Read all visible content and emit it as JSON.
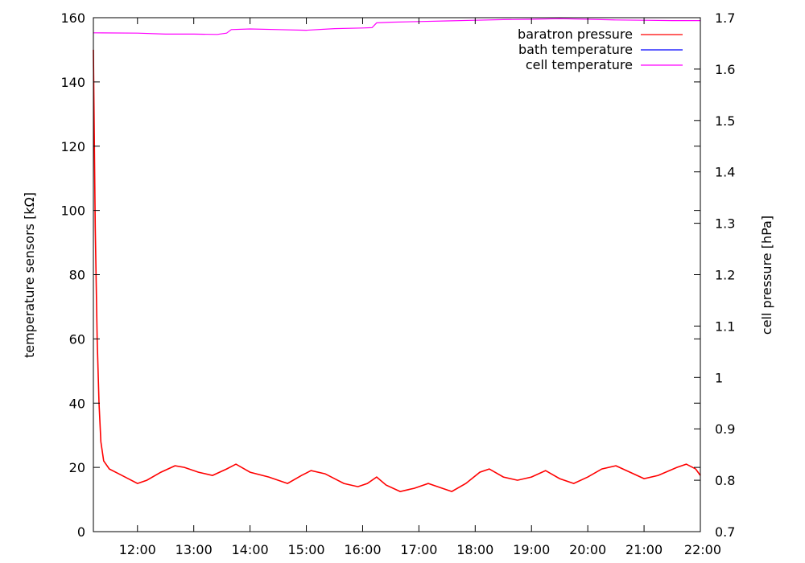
{
  "chart_data": {
    "type": "line",
    "xlabel": "",
    "ylabel": "temperature sensors [kΩ]",
    "y2label": "cell pressure [hPa]",
    "x_ticks": [
      "12:00",
      "13:00",
      "14:00",
      "15:00",
      "16:00",
      "17:00",
      "18:00",
      "19:00",
      "20:00",
      "21:00",
      "22:00"
    ],
    "xlim": [
      "11:13",
      "22:00"
    ],
    "ylim": [
      0,
      160
    ],
    "y_ticks": [
      0,
      20,
      40,
      60,
      80,
      100,
      120,
      140,
      160
    ],
    "y2lim": [
      0.7,
      1.7
    ],
    "y2_ticks": [
      "0.7",
      "0.8",
      "0.9",
      "1",
      "1.1",
      "1.2",
      "1.3",
      "1.4",
      "1.5",
      "1.6",
      "1.7"
    ],
    "grid": false,
    "legend_position": "top-right",
    "series": [
      {
        "name": "baratron pressure",
        "color": "#ff0000",
        "axis": "y",
        "points": [
          [
            "11:13",
            150
          ],
          [
            "11:15",
            95
          ],
          [
            "11:17",
            60
          ],
          [
            "11:19",
            40
          ],
          [
            "11:21",
            28
          ],
          [
            "11:24",
            22
          ],
          [
            "11:30",
            19.5
          ],
          [
            "11:40",
            18
          ],
          [
            "11:50",
            16.5
          ],
          [
            "12:00",
            15
          ],
          [
            "12:10",
            16
          ],
          [
            "12:25",
            18.5
          ],
          [
            "12:40",
            20.5
          ],
          [
            "12:50",
            20
          ],
          [
            "13:05",
            18.5
          ],
          [
            "13:20",
            17.5
          ],
          [
            "13:35",
            19.5
          ],
          [
            "13:45",
            21
          ],
          [
            "14:00",
            18.5
          ],
          [
            "14:20",
            17
          ],
          [
            "14:40",
            15
          ],
          [
            "14:55",
            17.5
          ],
          [
            "15:05",
            19
          ],
          [
            "15:20",
            18
          ],
          [
            "15:40",
            15
          ],
          [
            "15:55",
            14
          ],
          [
            "16:05",
            15
          ],
          [
            "16:15",
            17
          ],
          [
            "16:25",
            14.5
          ],
          [
            "16:40",
            12.5
          ],
          [
            "16:55",
            13.5
          ],
          [
            "17:10",
            15
          ],
          [
            "17:25",
            13.5
          ],
          [
            "17:35",
            12.5
          ],
          [
            "17:50",
            15
          ],
          [
            "18:05",
            18.5
          ],
          [
            "18:15",
            19.5
          ],
          [
            "18:30",
            17
          ],
          [
            "18:45",
            16
          ],
          [
            "19:00",
            17
          ],
          [
            "19:15",
            19
          ],
          [
            "19:30",
            16.5
          ],
          [
            "19:45",
            15
          ],
          [
            "20:00",
            17
          ],
          [
            "20:15",
            19.5
          ],
          [
            "20:30",
            20.5
          ],
          [
            "20:45",
            18.5
          ],
          [
            "21:00",
            16.5
          ],
          [
            "21:15",
            17.5
          ],
          [
            "21:35",
            20
          ],
          [
            "21:45",
            21
          ],
          [
            "21:55",
            19.5
          ],
          [
            "22:00",
            17.5
          ]
        ]
      },
      {
        "name": "bath temperature",
        "color": "#0000ff",
        "axis": "y",
        "points": []
      },
      {
        "name": "cell temperature",
        "color": "#ff00ff",
        "axis": "y",
        "points": [
          [
            "11:13",
            155.3
          ],
          [
            "12:00",
            155.2
          ],
          [
            "12:30",
            154.9
          ],
          [
            "13:00",
            154.9
          ],
          [
            "13:25",
            154.8
          ],
          [
            "13:35",
            155.2
          ],
          [
            "13:40",
            156.3
          ],
          [
            "14:00",
            156.5
          ],
          [
            "14:30",
            156.3
          ],
          [
            "15:00",
            156.1
          ],
          [
            "15:30",
            156.6
          ],
          [
            "16:00",
            156.8
          ],
          [
            "16:10",
            156.9
          ],
          [
            "16:15",
            158.4
          ],
          [
            "16:30",
            158.6
          ],
          [
            "17:00",
            158.8
          ],
          [
            "17:30",
            159.0
          ],
          [
            "18:00",
            159.2
          ],
          [
            "18:30",
            159.4
          ],
          [
            "19:00",
            159.5
          ],
          [
            "19:30",
            159.7
          ],
          [
            "20:00",
            159.5
          ],
          [
            "20:30",
            159.3
          ],
          [
            "21:00",
            159.2
          ],
          [
            "21:30",
            159.1
          ],
          [
            "22:00",
            159.1
          ]
        ]
      }
    ]
  }
}
